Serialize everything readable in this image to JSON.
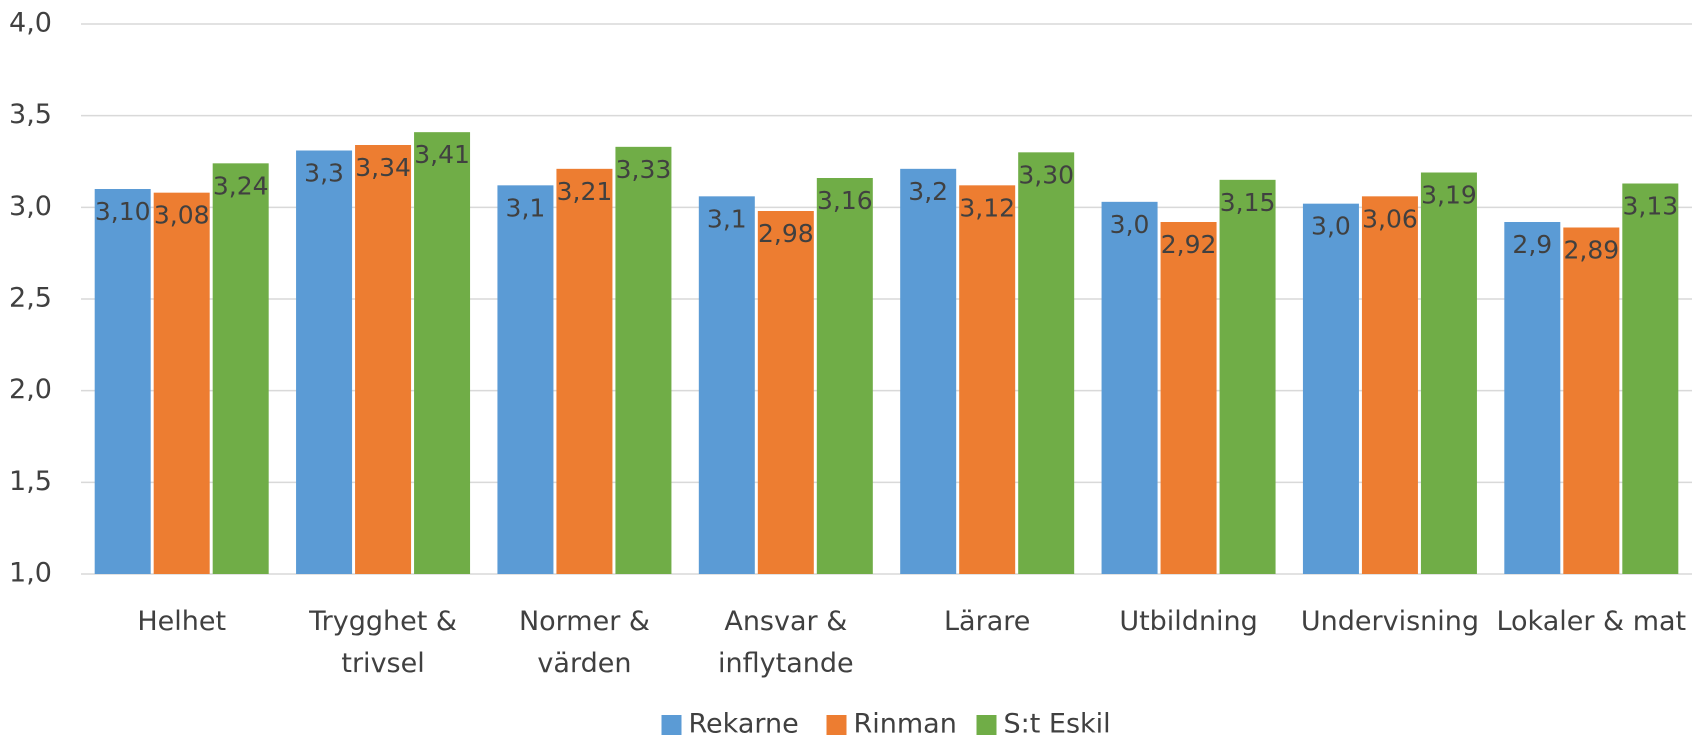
{
  "chart_data": {
    "type": "bar",
    "categories": [
      "Helhet",
      "Trygghet &\ntrivsel",
      "Normer &\nvärden",
      "Ansvar &\ninflytande",
      "Lärare",
      "Utbildning",
      "Undervisning",
      "Lokaler & mat"
    ],
    "series": [
      {
        "name": "Rekarne",
        "color": "#5b9bd5",
        "values": [
          3.1,
          3.31,
          3.12,
          3.06,
          3.21,
          3.03,
          3.02,
          2.92
        ],
        "value_labels": [
          "3,10",
          "3,3",
          "3,1",
          "3,1",
          "3,2",
          "3,0",
          "3,0",
          "2,9"
        ]
      },
      {
        "name": "Rinman",
        "color": "#ed7d31",
        "values": [
          3.08,
          3.34,
          3.21,
          2.98,
          3.12,
          2.92,
          3.06,
          2.89
        ],
        "value_labels": [
          "3,08",
          "3,34",
          "3,21",
          "2,98",
          "3,12",
          "2,92",
          "3,06",
          "2,89"
        ]
      },
      {
        "name": "S:t Eskil",
        "color": "#70ad47",
        "values": [
          3.24,
          3.41,
          3.33,
          3.16,
          3.3,
          3.15,
          3.19,
          3.13
        ],
        "value_labels": [
          "3,24",
          "3,41",
          "3,33",
          "3,16",
          "3,30",
          "3,15",
          "3,19",
          "3,13"
        ]
      }
    ],
    "ylim": [
      1.0,
      4.0
    ],
    "yticks": [
      {
        "value": 1.0,
        "label": "1,0"
      },
      {
        "value": 1.5,
        "label": "1,5"
      },
      {
        "value": 2.0,
        "label": "2,0"
      },
      {
        "value": 2.5,
        "label": "2,5"
      },
      {
        "value": 3.0,
        "label": "3,0"
      },
      {
        "value": 3.5,
        "label": "3,5"
      },
      {
        "value": 4.0,
        "label": "4,0"
      }
    ],
    "grid": true,
    "legend": "bottom"
  }
}
